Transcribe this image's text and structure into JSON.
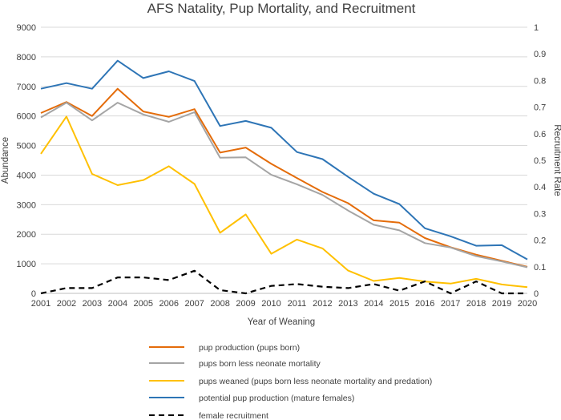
{
  "chart_data": {
    "type": "line",
    "title": "AFS Natality, Pup Mortality, and Recruitment",
    "xlabel": "Year of Weaning",
    "ylabel": "Abundance",
    "y2label": "Recruitment Rate",
    "x": [
      2001,
      2002,
      2003,
      2004,
      2005,
      2006,
      2007,
      2008,
      2009,
      2010,
      2011,
      2012,
      2013,
      2014,
      2015,
      2016,
      2017,
      2018,
      2019,
      2020
    ],
    "ylim": [
      0,
      9000
    ],
    "yticks": [
      0,
      1000,
      2000,
      3000,
      4000,
      5000,
      6000,
      7000,
      8000,
      9000
    ],
    "y2lim": [
      0,
      1
    ],
    "y2ticks": [
      0,
      0.1,
      0.2,
      0.3,
      0.4,
      0.5,
      0.6,
      0.7,
      0.8,
      0.9,
      1
    ],
    "grid": "horizontal",
    "legend_position": "bottom",
    "series": [
      {
        "name": "pup production (pups born)",
        "axis": "left",
        "color": "#E46C0A",
        "dash": "solid",
        "values": [
          6100,
          6470,
          6000,
          6920,
          6150,
          5970,
          6230,
          4760,
          4930,
          4380,
          3900,
          3430,
          3050,
          2470,
          2390,
          1870,
          1560,
          1310,
          1100,
          900
        ]
      },
      {
        "name": "pups born less neonate mortality",
        "axis": "left",
        "color": "#A5A5A5",
        "dash": "solid",
        "values": [
          5950,
          6450,
          5850,
          6450,
          6050,
          5800,
          6130,
          4590,
          4600,
          4010,
          3690,
          3330,
          2800,
          2320,
          2130,
          1700,
          1550,
          1260,
          1080,
          880
        ]
      },
      {
        "name": "pups weaned (pups born less neonate mortality and predation)",
        "axis": "left",
        "color": "#FFC000",
        "dash": "solid",
        "values": [
          4720,
          5980,
          4040,
          3660,
          3830,
          4300,
          3700,
          2050,
          2670,
          1340,
          1820,
          1520,
          770,
          420,
          520,
          400,
          330,
          490,
          300,
          210
        ]
      },
      {
        "name": "potential pup production (mature females)",
        "axis": "left",
        "color": "#2E75B6",
        "dash": "solid",
        "values": [
          6920,
          7110,
          6920,
          7870,
          7280,
          7510,
          7180,
          5660,
          5830,
          5600,
          4780,
          4540,
          3940,
          3370,
          3020,
          2200,
          1930,
          1610,
          1630,
          1150
        ]
      },
      {
        "name": "female recruitment",
        "axis": "right",
        "color": "#000000",
        "dash": "dashed",
        "values": [
          0.0,
          0.02,
          0.02,
          0.06,
          0.06,
          0.05,
          0.085,
          0.012,
          0.0,
          0.028,
          0.035,
          0.025,
          0.02,
          0.035,
          0.01,
          0.045,
          0.0,
          0.045,
          0.0,
          0.0
        ]
      }
    ]
  }
}
